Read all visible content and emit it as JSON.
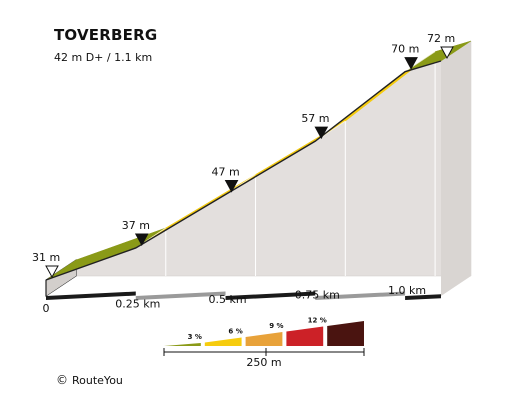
{
  "title": "TOVERBERG",
  "subtitle": "42 m D+ / 1.1 km",
  "copyright": "RouteYou",
  "chart_data": {
    "type": "area",
    "title": "TOVERBERG",
    "subtitle": "42 m D+ / 1.1 km",
    "segments": [
      {
        "x0": 0.0,
        "x1": 0.25,
        "y0": 31,
        "y1": 37,
        "color": "#8a9a17"
      },
      {
        "x0": 0.25,
        "x1": 0.5,
        "y0": 37,
        "y1": 47,
        "color": "#f6cc0e"
      },
      {
        "x0": 0.5,
        "x1": 0.75,
        "y0": 47,
        "y1": 57,
        "color": "#f6cc0e"
      },
      {
        "x0": 0.75,
        "x1": 1.0,
        "y0": 57,
        "y1": 70,
        "color": "#f6cc0e"
      },
      {
        "x0": 1.0,
        "x1": 1.1,
        "y0": 70,
        "y1": 72,
        "color": "#8a9a17"
      }
    ],
    "elevation_markers": [
      {
        "x": 0.0,
        "label": "31 m",
        "marker": "open"
      },
      {
        "x": 0.25,
        "label": "37 m",
        "marker": "filled"
      },
      {
        "x": 0.5,
        "label": "47 m",
        "marker": "filled"
      },
      {
        "x": 0.75,
        "label": "57 m",
        "marker": "filled"
      },
      {
        "x": 1.0,
        "label": "70 m",
        "marker": "filled"
      },
      {
        "x": 1.1,
        "label": "72 m",
        "marker": "open"
      }
    ],
    "distance_ticks": [
      {
        "x": 0.0,
        "label": "0"
      },
      {
        "x": 0.25,
        "label": "0.25 km"
      },
      {
        "x": 0.5,
        "label": "0.5 km"
      },
      {
        "x": 0.75,
        "label": "0.75 km"
      },
      {
        "x": 1.0,
        "label": "1.0 km"
      }
    ],
    "xlim": [
      0,
      1.1
    ],
    "ylim": [
      31,
      72
    ],
    "legend": {
      "items": [
        {
          "label": "3 %",
          "color": "#8a9a17"
        },
        {
          "label": "6 %",
          "color": "#f6cc0e"
        },
        {
          "label": "9 %",
          "color": "#e8a23a"
        },
        {
          "label": "12 %",
          "color": "#cc2127"
        },
        {
          "label": "",
          "color": "#4a1410"
        }
      ],
      "scale_label": "250 m"
    }
  }
}
